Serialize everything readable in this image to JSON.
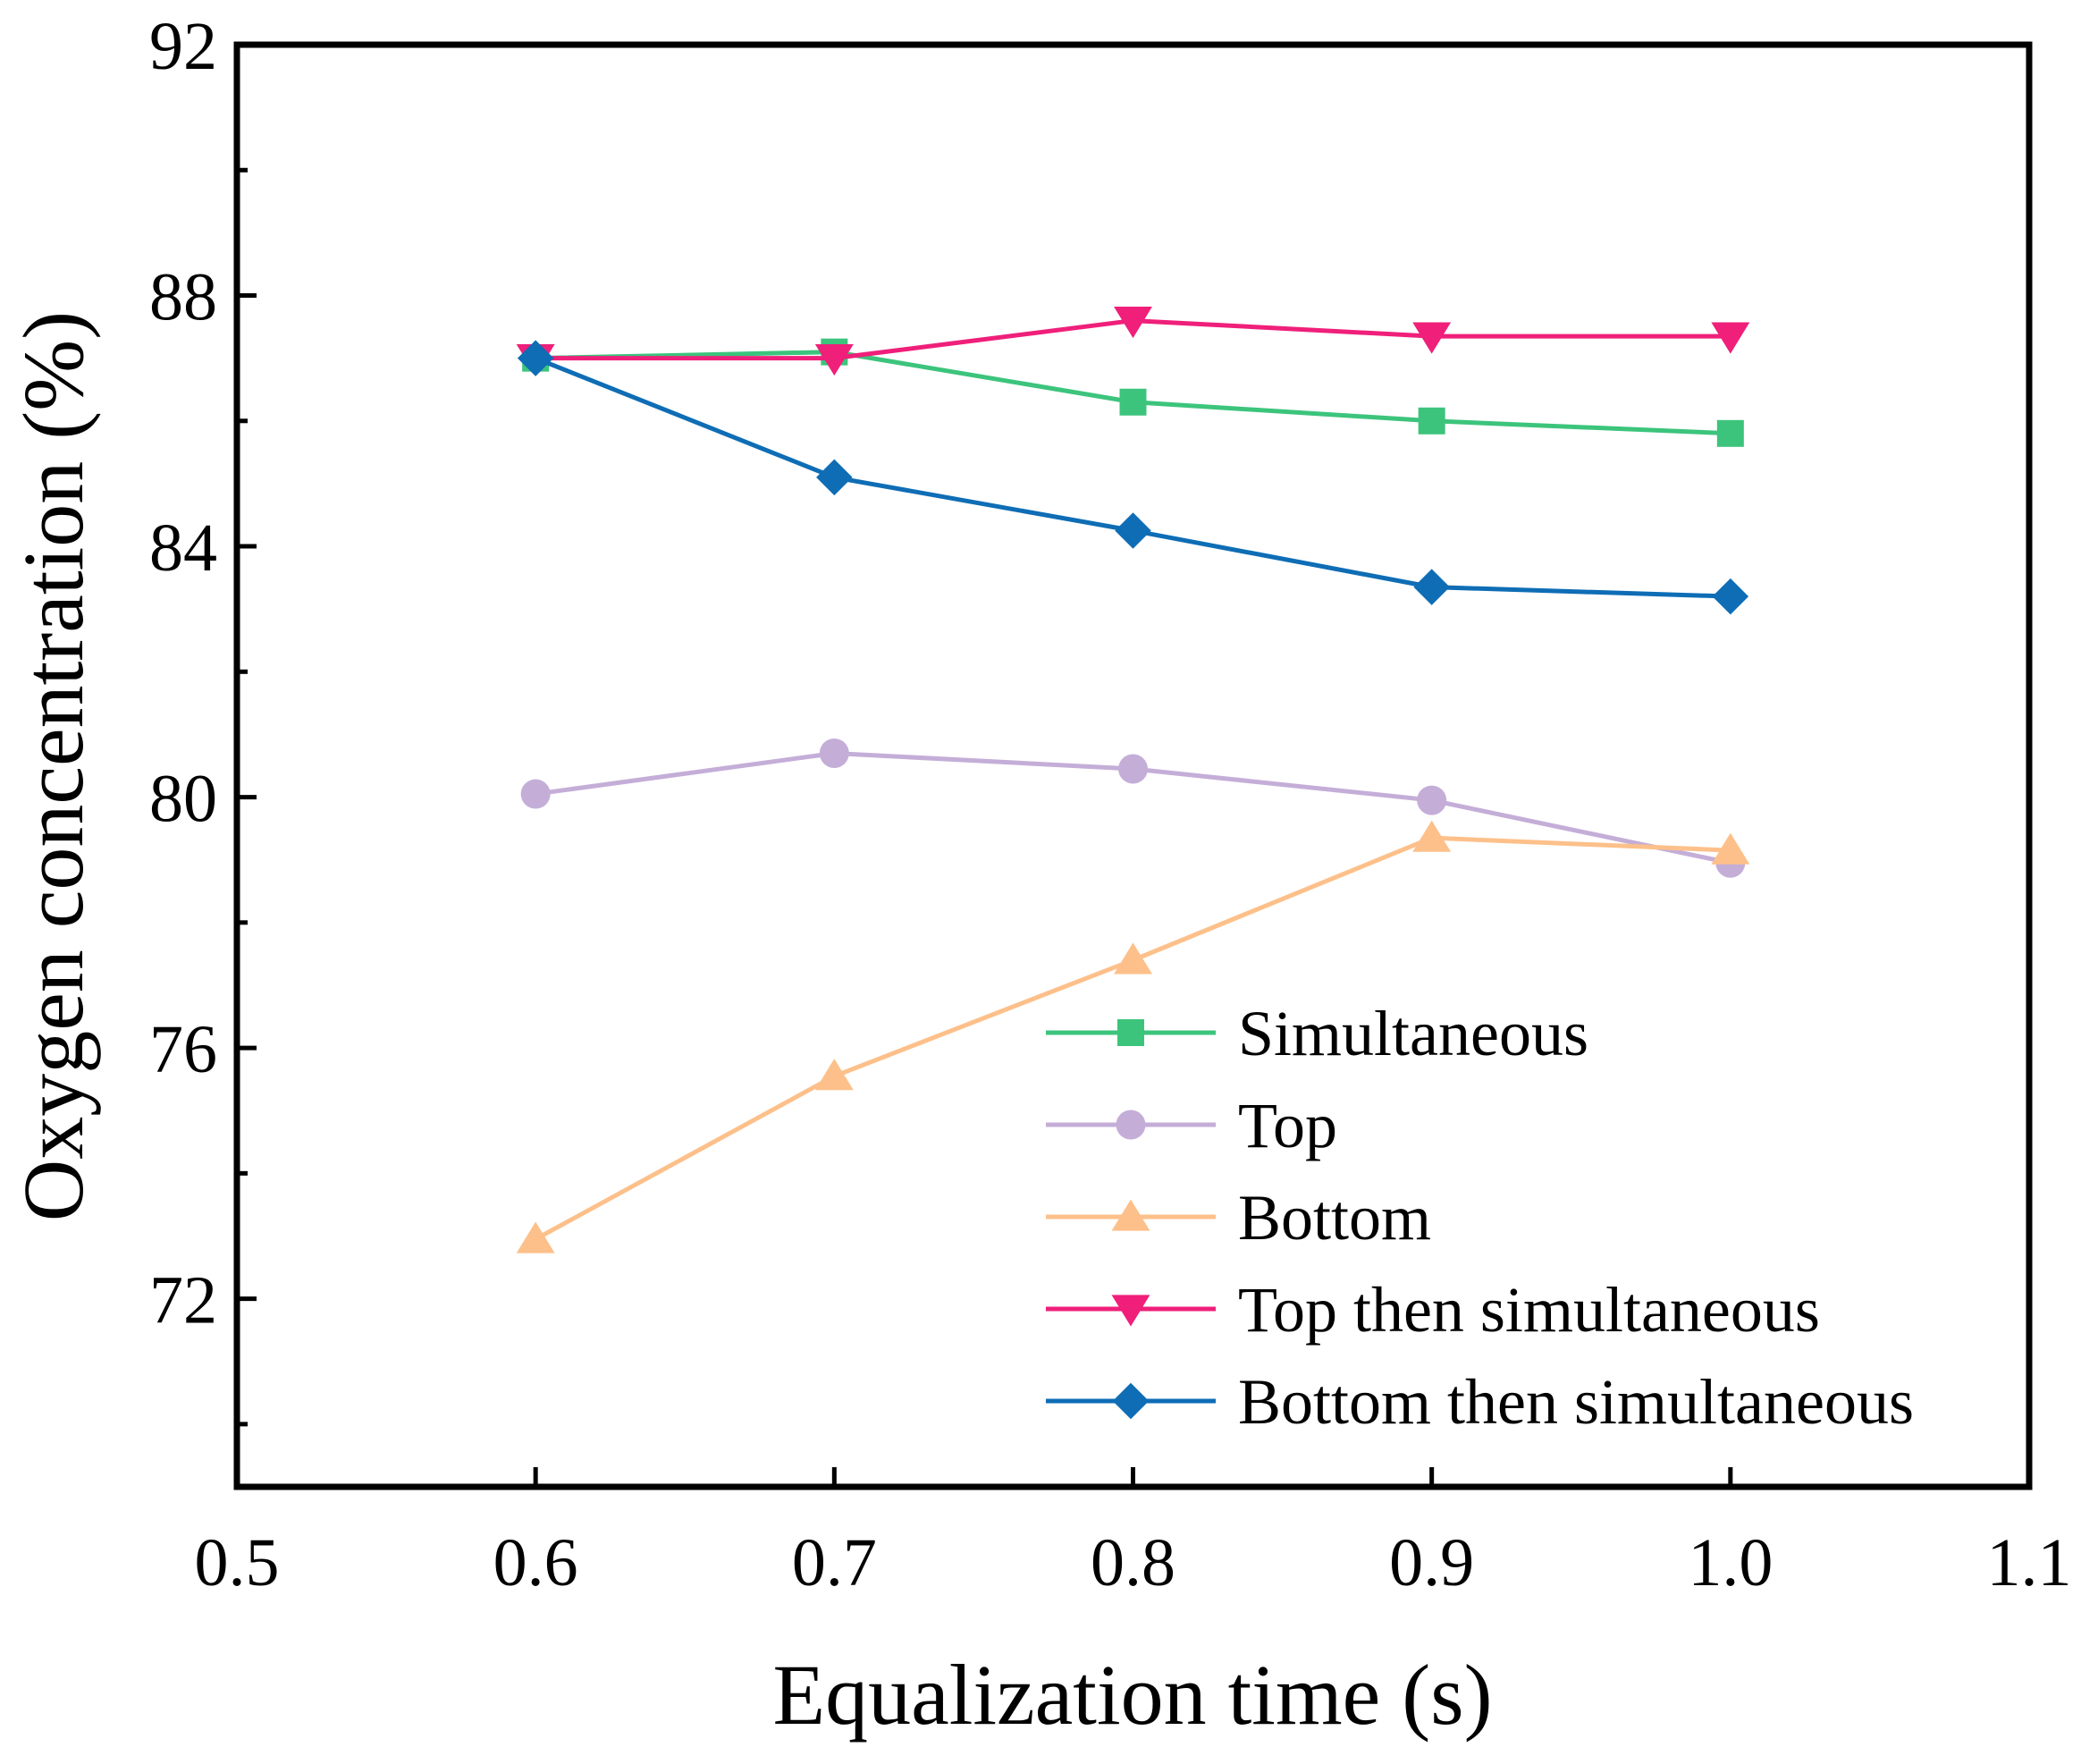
{
  "chart_data": {
    "type": "line",
    "title": "",
    "xlabel": "Equalization time (s)",
    "ylabel": "Oxygen concentration (%)",
    "xlim": [
      0.5,
      1.1
    ],
    "ylim": [
      69,
      92
    ],
    "x_ticks": [
      "0.5",
      "0.6",
      "0.7",
      "0.8",
      "0.9",
      "1.0",
      "1.1"
    ],
    "x_tick_values": [
      0.5,
      0.6,
      0.7,
      0.8,
      0.9,
      1.0,
      1.1
    ],
    "y_ticks": [
      "72",
      "76",
      "80",
      "84",
      "88",
      "92"
    ],
    "y_tick_values": [
      72,
      76,
      80,
      84,
      88,
      92
    ],
    "y_minor_ticks": [
      70,
      74,
      78,
      82,
      86,
      90
    ],
    "grid": false,
    "legend_position": "bottom-right",
    "x": [
      0.6,
      0.7,
      0.8,
      0.9,
      1.0
    ],
    "series": [
      {
        "name": "Simultaneous",
        "marker": "square",
        "color": "#3cc47c",
        "values": [
          87.0,
          87.1,
          86.3,
          86.0,
          85.8
        ]
      },
      {
        "name": "Top",
        "marker": "circle",
        "color": "#c4aed8",
        "values": [
          80.05,
          80.7,
          80.45,
          79.95,
          78.95
        ]
      },
      {
        "name": "Bottom",
        "marker": "triangle-up",
        "color": "#fdc08a",
        "values": [
          72.95,
          75.55,
          77.4,
          79.35,
          79.15
        ]
      },
      {
        "name": "Top then simultaneous",
        "marker": "triangle-down",
        "color": "#ef1f7a",
        "values": [
          87.0,
          87.0,
          87.6,
          87.35,
          87.35
        ]
      },
      {
        "name": "Bottom then simultaneous",
        "marker": "diamond",
        "color": "#0e6db5",
        "values": [
          87.0,
          85.1,
          84.25,
          83.35,
          83.2
        ]
      }
    ]
  }
}
